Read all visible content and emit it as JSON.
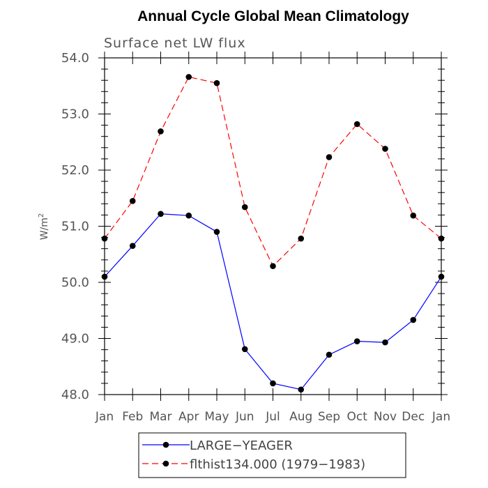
{
  "chart_data": {
    "type": "line",
    "title": "Annual Cycle Global Mean Climatology",
    "subtitle": "Surface net LW flux",
    "ylabel": "W/m",
    "ylabel_superscript": "2",
    "ylim": [
      48.0,
      54.0
    ],
    "yticks": [
      "48.0",
      "49.0",
      "50.0",
      "51.0",
      "52.0",
      "53.0",
      "54.0"
    ],
    "categories": [
      "Jan",
      "Feb",
      "Mar",
      "Apr",
      "May",
      "Jun",
      "Jul",
      "Aug",
      "Sep",
      "Oct",
      "Nov",
      "Dec",
      "Jan"
    ],
    "legend_position": "bottom",
    "series": [
      {
        "name": "LARGE−YEAGER",
        "color": "#0000ff",
        "dash": "solid",
        "values": [
          50.1,
          50.65,
          51.22,
          51.19,
          50.9,
          48.81,
          48.2,
          48.09,
          48.71,
          48.95,
          48.93,
          49.33,
          50.1
        ]
      },
      {
        "name": "flthist134.000 (1979−1983)",
        "color": "#ff0000",
        "dash": "dashed",
        "values": [
          50.78,
          51.45,
          52.69,
          53.66,
          53.55,
          51.34,
          50.29,
          50.78,
          52.23,
          52.82,
          52.38,
          51.19,
          50.78
        ]
      }
    ]
  }
}
